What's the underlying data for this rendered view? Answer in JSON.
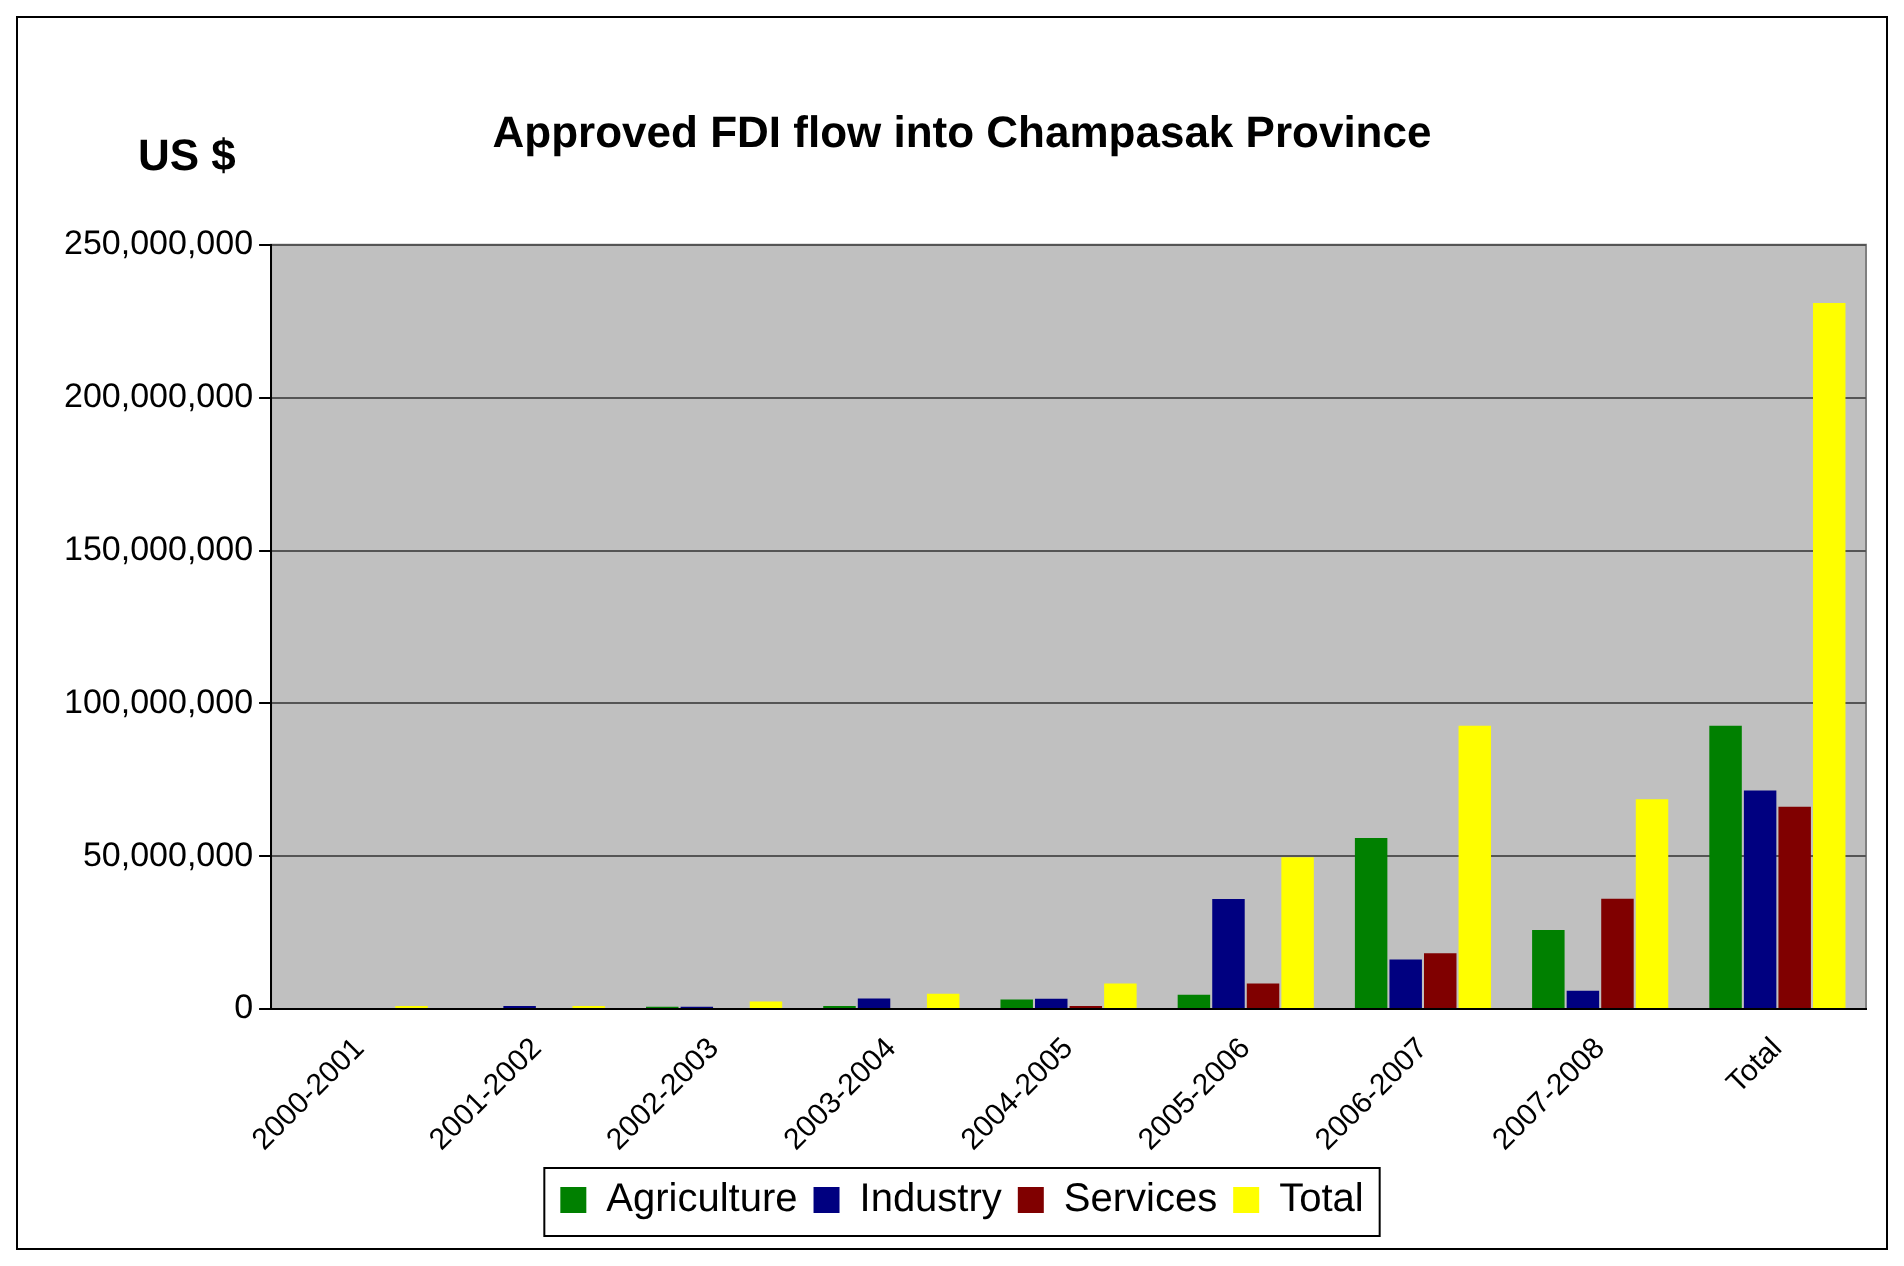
{
  "chart_data": {
    "type": "bar",
    "title": "Approved FDI flow into Champasak Province",
    "ylabel": "US $",
    "categories": [
      "2000-2001",
      "2001-2002",
      "2002-2003",
      "2003-2004",
      "2004-2005",
      "2005-2006",
      "2006-2007",
      "2007-2008",
      "Total"
    ],
    "series": [
      {
        "name": "Agriculture",
        "color": "#008000",
        "values": [
          0,
          0,
          800000.0,
          1000000.0,
          3100000.0,
          4700000.0,
          56000000.0,
          25900000.0,
          92700000.0
        ]
      },
      {
        "name": "Industry",
        "color": "#000080",
        "values": [
          0,
          1000000.0,
          800000.0,
          3500000.0,
          3400000.0,
          36000000.0,
          16200000.0,
          6000000.0,
          71500000.0
        ]
      },
      {
        "name": "Services",
        "color": "#800000",
        "values": [
          0,
          0,
          0,
          null,
          1000000.0,
          8400000.0,
          18300000.0,
          36100000.0,
          66200000.0
        ]
      },
      {
        "name": "Total",
        "color": "#ffff00",
        "values": [
          1000000.0,
          1000000.0,
          2500000.0,
          5000000.0,
          8400000.0,
          49700000.0,
          92700000.0,
          68600000.0,
          231000000.0
        ]
      }
    ],
    "ylim": [
      0,
      250000000
    ],
    "yticks": [
      {
        "value": 0,
        "label": "0"
      },
      {
        "value": 50000000,
        "label": "50,000,000"
      },
      {
        "value": 100000000,
        "label": "100,000,000"
      },
      {
        "value": 150000000,
        "label": "150,000,000"
      },
      {
        "value": 200000000,
        "label": "200,000,000"
      },
      {
        "value": 250000000,
        "label": "250,000,000"
      }
    ],
    "grid": "y",
    "legend": "bottom"
  }
}
